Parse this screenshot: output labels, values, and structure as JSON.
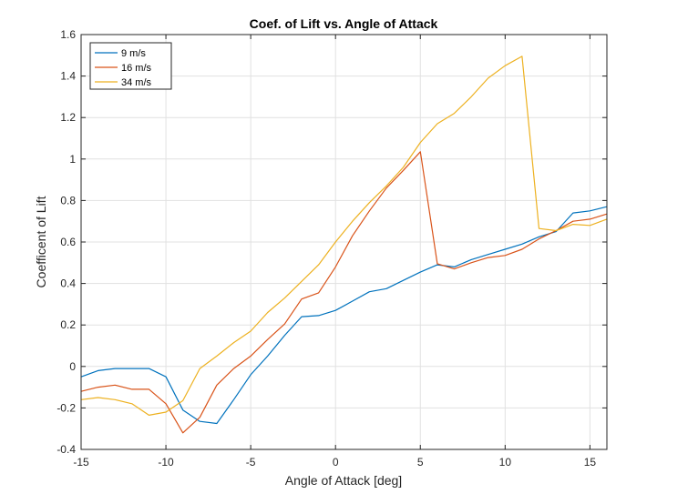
{
  "chart_data": {
    "type": "line",
    "title": "Coef. of Lift vs. Angle of Attack",
    "xlabel": "Angle of Attack [deg]",
    "ylabel": "Coefficent of Lift",
    "xlim": [
      -15,
      16
    ],
    "ylim": [
      -0.4,
      1.6
    ],
    "xticks": [
      -15,
      -10,
      -5,
      0,
      5,
      10,
      15
    ],
    "xtick_labels": [
      "-15",
      "-10",
      "-5",
      "0",
      "5",
      "10",
      "15"
    ],
    "yticks": [
      -0.4,
      -0.2,
      0,
      0.2,
      0.4,
      0.6,
      0.8,
      1,
      1.2,
      1.4,
      1.6
    ],
    "ytick_labels": [
      "-0.4",
      "-0.2",
      "0",
      "0.2",
      "0.4",
      "0.6",
      "0.8",
      "1",
      "1.2",
      "1.4",
      "1.6"
    ],
    "grid": true,
    "legend_position": "top-left",
    "x": [
      -15,
      -14,
      -13,
      -12,
      -11,
      -10,
      -9,
      -8,
      -7,
      -6,
      -5,
      -4,
      -3,
      -2,
      -1,
      0,
      1,
      2,
      3,
      4,
      5,
      6,
      7,
      8,
      9,
      10,
      11,
      12,
      13,
      14,
      15,
      16
    ],
    "series": [
      {
        "name": "9 m/s",
        "color": "#0072BD",
        "values": [
          -0.05,
          -0.02,
          -0.01,
          -0.01,
          -0.01,
          -0.05,
          -0.21,
          -0.265,
          -0.275,
          -0.16,
          -0.04,
          0.05,
          0.15,
          0.24,
          0.245,
          0.27,
          0.315,
          0.36,
          0.375,
          0.415,
          0.455,
          0.49,
          0.48,
          0.515,
          0.54,
          0.565,
          0.59,
          0.625,
          0.65,
          0.74,
          0.75,
          0.77
        ]
      },
      {
        "name": "16 m/s",
        "color": "#D95319",
        "values": [
          -0.12,
          -0.1,
          -0.09,
          -0.11,
          -0.11,
          -0.18,
          -0.32,
          -0.245,
          -0.09,
          -0.01,
          0.05,
          0.13,
          0.205,
          0.325,
          0.355,
          0.48,
          0.63,
          0.75,
          0.86,
          0.945,
          1.035,
          0.495,
          0.47,
          0.5,
          0.525,
          0.535,
          0.565,
          0.615,
          0.655,
          0.7,
          0.71,
          0.735
        ]
      },
      {
        "name": "34 m/s",
        "color": "#EDB120",
        "values": [
          -0.16,
          -0.15,
          -0.16,
          -0.18,
          -0.235,
          -0.22,
          -0.165,
          -0.01,
          0.05,
          0.115,
          0.17,
          0.26,
          0.33,
          0.41,
          0.49,
          0.6,
          0.7,
          0.79,
          0.87,
          0.96,
          1.08,
          1.17,
          1.22,
          1.3,
          1.39,
          1.45,
          1.495,
          0.665,
          0.655,
          0.685,
          0.68,
          0.71
        ]
      }
    ]
  }
}
